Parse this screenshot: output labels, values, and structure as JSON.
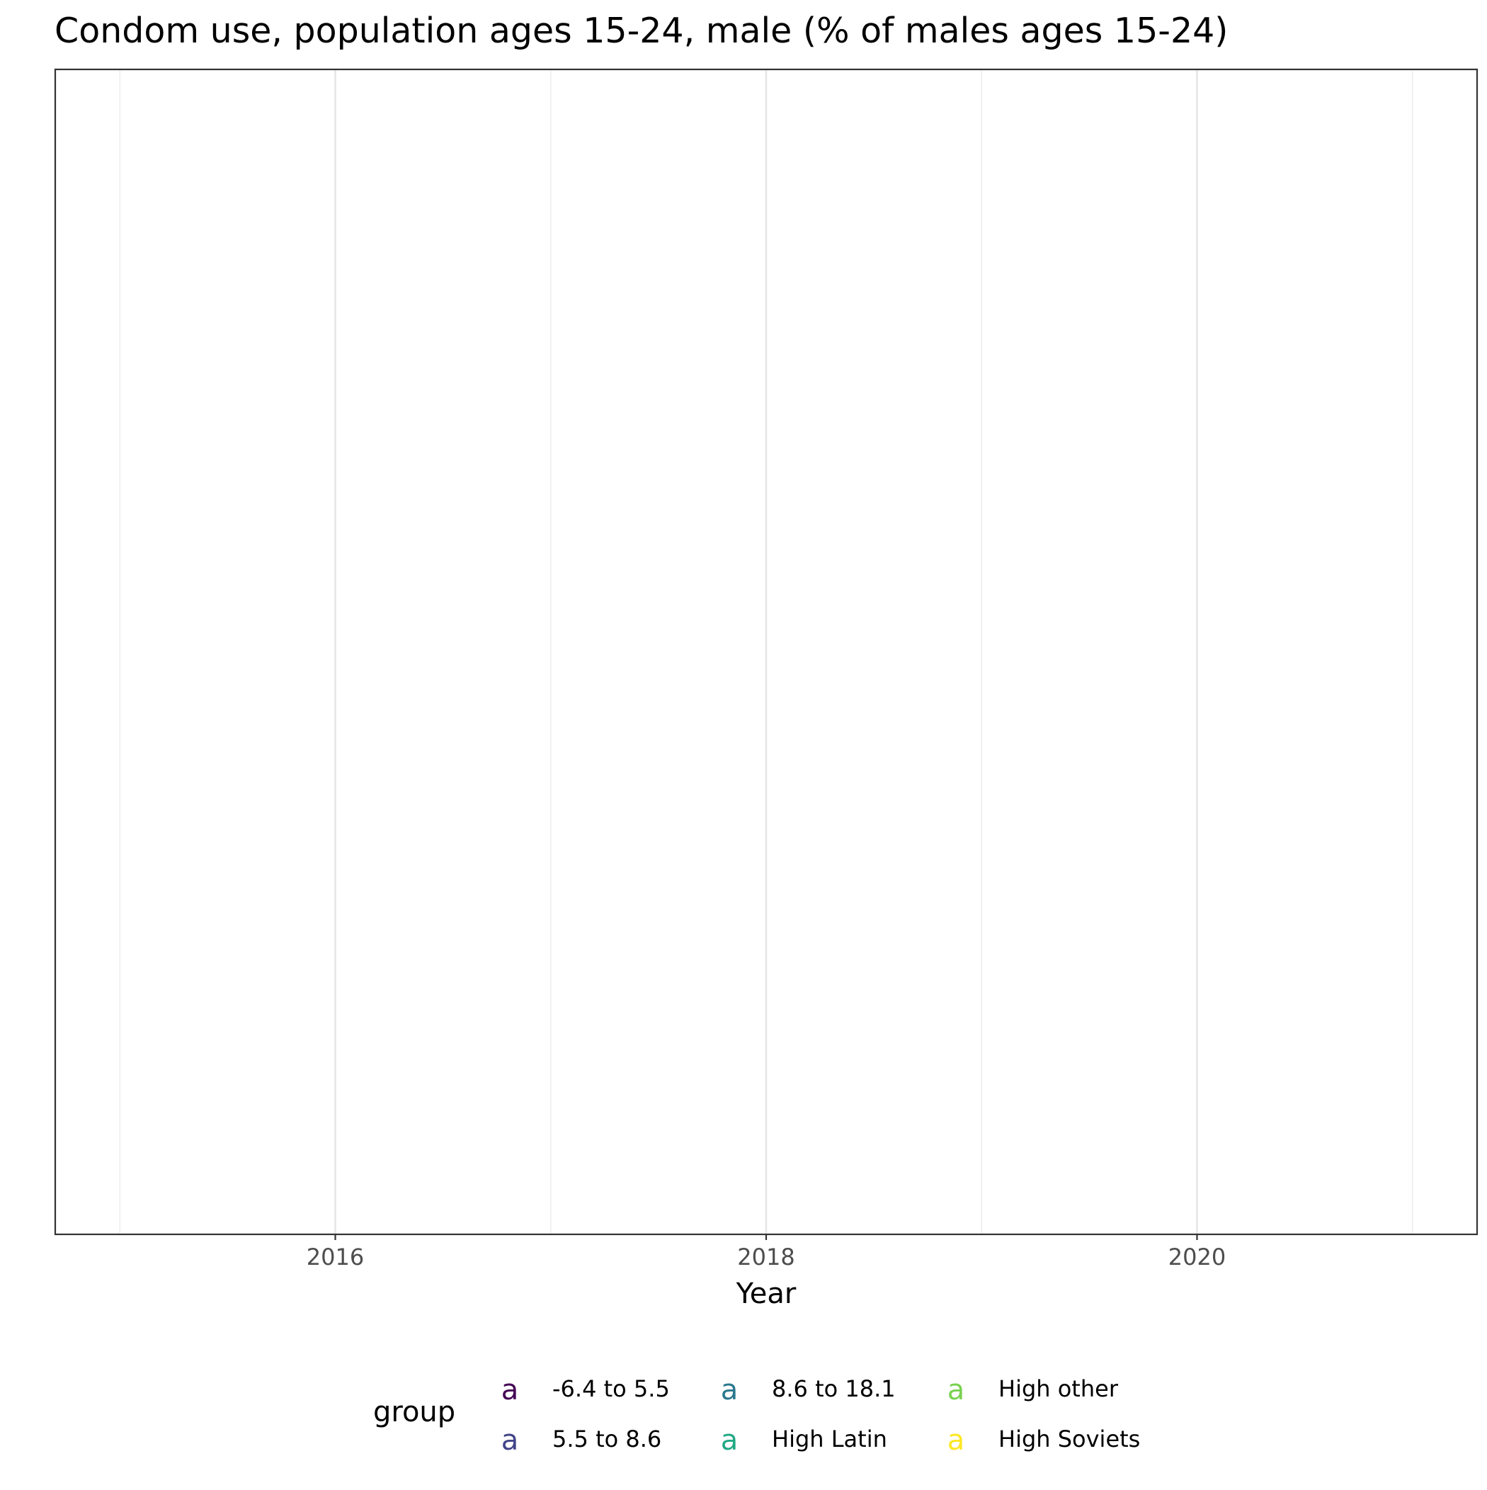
{
  "chart_data": {
    "type": "line",
    "title": "Condom use, population ages 15-24, male (% of males ages 15-24)",
    "xlabel": "Year",
    "ylabel": "",
    "xlim": [
      2014.7,
      2021.3
    ],
    "x_ticks": [
      2016,
      2018,
      2020
    ],
    "x_tick_labels": [
      "2016",
      "2018",
      "2020"
    ],
    "x_minor_ticks": [
      2015,
      2017,
      2019,
      2021
    ],
    "y_ticks": [],
    "grid": true,
    "legend": {
      "title": "group",
      "position": "bottom",
      "key_glyph": "a",
      "entries": [
        {
          "label": "-6.4 to 5.5",
          "color": "#440154"
        },
        {
          "label": "5.5 to 8.6",
          "color": "#414487"
        },
        {
          "label": "8.6 to 18.1",
          "color": "#2A788E"
        },
        {
          "label": "High Latin",
          "color": "#22A884"
        },
        {
          "label": "High other",
          "color": "#7AD151"
        },
        {
          "label": "High Soviets",
          "color": "#FDE725"
        }
      ]
    },
    "series": []
  }
}
